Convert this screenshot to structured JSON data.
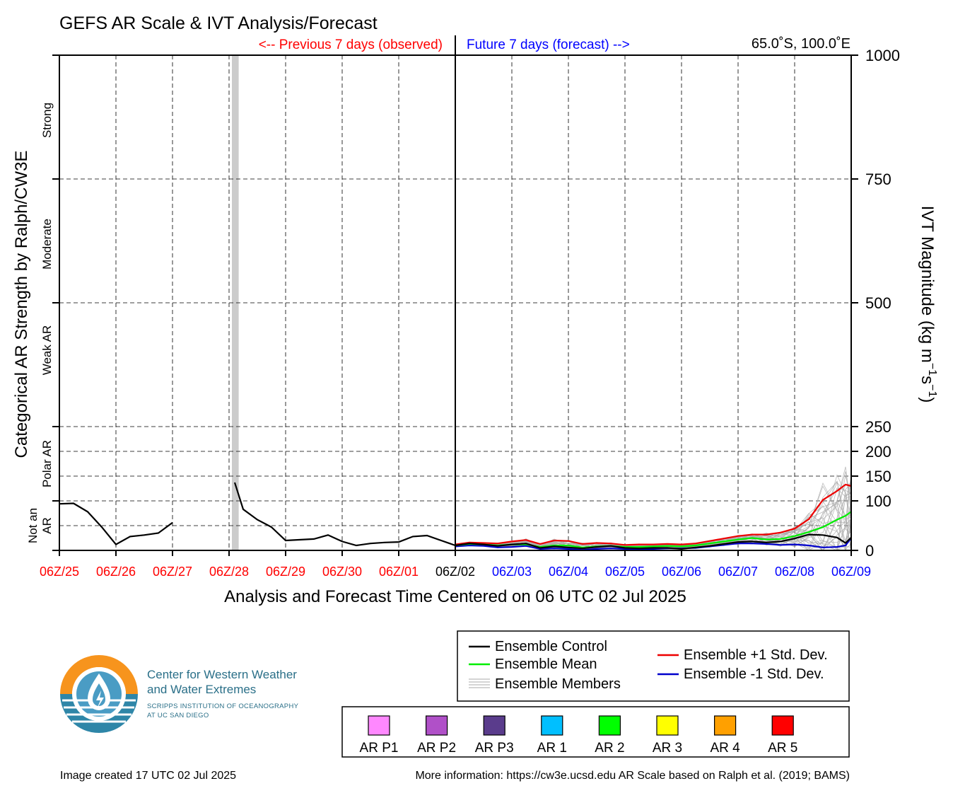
{
  "title": "GEFS AR Scale & IVT Analysis/Forecast",
  "previous_label": "<-- Previous 7 days (observed)",
  "future_label": "Future 7 days (forecast) -->",
  "location_label": "65.0˚S, 100.0˚E",
  "xlabel": "Analysis and Forecast Time Centered on 06 UTC 02 Jul 2025",
  "ylabel_left": "Categorical AR Strength by Ralph/CW3E",
  "ylabel_right": {
    "main": "IVT Magnitude (kg m",
    "sup1": "−1",
    "mid": "s",
    "sup2": "−1",
    "end": ")"
  },
  "category_labels": [
    {
      "lines": [
        "Not an",
        "AR"
      ]
    },
    {
      "lines": [
        "Polar AR"
      ]
    },
    {
      "lines": [
        "Weak AR"
      ]
    },
    {
      "lines": [
        "Moderate"
      ]
    },
    {
      "lines": [
        "Strong"
      ]
    }
  ],
  "colors": {
    "observed": "#ff0000",
    "forecast": "#0000ff",
    "control": "#000000",
    "mean": "#00ee00",
    "plus_std": "#ee0000",
    "minus_std": "#0000cc",
    "members": "#aaaaaa",
    "missing_band": "#cccccc"
  },
  "legend": {
    "control": "Ensemble Control",
    "mean": "Ensemble Mean",
    "members": "Ensemble Members",
    "plus_std": "Ensemble +1 Std. Dev.",
    "minus_std": "Ensemble -1 Std. Dev."
  },
  "ar_scale": [
    {
      "label": "AR P1",
      "color": "#ff88ff"
    },
    {
      "label": "AR P2",
      "color": "#b050c8"
    },
    {
      "label": "AR P3",
      "color": "#5a3c8c"
    },
    {
      "label": "AR 1",
      "color": "#00bfff"
    },
    {
      "label": "AR 2",
      "color": "#00ff00"
    },
    {
      "label": "AR 3",
      "color": "#ffff00"
    },
    {
      "label": "AR 4",
      "color": "#ffa000"
    },
    {
      "label": "AR 5",
      "color": "#ff0000"
    }
  ],
  "logo": {
    "line1": "Center for Western Weather",
    "line2": "and Water Extremes",
    "line3": "SCRIPPS INSTITUTION OF OCEANOGRAPHY",
    "line4": "AT UC SAN DIEGO"
  },
  "footer_left": "Image created 17 UTC 02 Jul 2025",
  "footer_right": "More information: https://cw3e.ucsd.edu AR Scale based on Ralph et al. (2019; BAMS)",
  "chart_data": {
    "type": "line",
    "title": "GEFS AR Scale & IVT Analysis/Forecast",
    "xlabel": "Analysis and Forecast Time Centered on 06 UTC 02 Jul 2025",
    "ylabel": "IVT Magnitude (kg m−1s−1)",
    "x_unit": "days relative to 06Z/02 Jul 2025",
    "xlim": [
      -7,
      7
    ],
    "ylim": [
      0,
      1000
    ],
    "y_scale": "piecewise (0-250 expanded, 250-1000 compressed)",
    "grid": true,
    "x_ticks": [
      {
        "value": -7,
        "label": "06Z/25",
        "period": "observed"
      },
      {
        "value": -6,
        "label": "06Z/26",
        "period": "observed"
      },
      {
        "value": -5,
        "label": "06Z/27",
        "period": "observed"
      },
      {
        "value": -4,
        "label": "06Z/28",
        "period": "observed"
      },
      {
        "value": -3,
        "label": "06Z/29",
        "period": "observed"
      },
      {
        "value": -2,
        "label": "06Z/30",
        "period": "observed"
      },
      {
        "value": -1,
        "label": "06Z/01",
        "period": "observed"
      },
      {
        "value": 0,
        "label": "06Z/02",
        "period": "now"
      },
      {
        "value": 1,
        "label": "06Z/03",
        "period": "forecast"
      },
      {
        "value": 2,
        "label": "06Z/04",
        "period": "forecast"
      },
      {
        "value": 3,
        "label": "06Z/05",
        "period": "forecast"
      },
      {
        "value": 4,
        "label": "06Z/06",
        "period": "forecast"
      },
      {
        "value": 5,
        "label": "06Z/07",
        "period": "forecast"
      },
      {
        "value": 6,
        "label": "06Z/08",
        "period": "forecast"
      },
      {
        "value": 7,
        "label": "06Z/09",
        "period": "forecast"
      }
    ],
    "y_ticks": [
      0,
      100,
      150,
      200,
      250,
      500,
      750,
      1000
    ],
    "y_grid_only": [
      50
    ],
    "missing_band": [
      -3.95,
      -3.83
    ],
    "observed": [
      [
        [
          -7.0,
          94
        ],
        [
          -6.75,
          95
        ],
        [
          -6.5,
          78
        ],
        [
          -6.25,
          47
        ],
        [
          -6.0,
          12
        ],
        [
          -5.75,
          28
        ],
        [
          -5.5,
          31
        ],
        [
          -5.25,
          35
        ],
        [
          -5.0,
          56
        ]
      ],
      [
        [
          -3.9,
          137
        ],
        [
          -3.75,
          83
        ],
        [
          -3.5,
          62
        ],
        [
          -3.25,
          47
        ],
        [
          -3.0,
          20
        ],
        [
          -2.5,
          23
        ],
        [
          -2.25,
          31
        ],
        [
          -2.0,
          18
        ],
        [
          -1.75,
          10
        ],
        [
          -1.5,
          14
        ],
        [
          -1.25,
          16
        ],
        [
          -1.0,
          17
        ],
        [
          -0.75,
          28
        ],
        [
          -0.5,
          30
        ],
        [
          -0.25,
          20
        ],
        [
          0.0,
          10
        ]
      ]
    ],
    "series": [
      {
        "name": "Ensemble Control",
        "role": "control",
        "points": [
          [
            0.0,
            10
          ],
          [
            0.25,
            14
          ],
          [
            0.5,
            12
          ],
          [
            0.75,
            9
          ],
          [
            1.0,
            12
          ],
          [
            1.25,
            14
          ],
          [
            1.5,
            5
          ],
          [
            1.75,
            8
          ],
          [
            2.0,
            6
          ],
          [
            2.25,
            4
          ],
          [
            2.5,
            7
          ],
          [
            2.75,
            9
          ],
          [
            3.0,
            5
          ],
          [
            3.25,
            4
          ],
          [
            3.5,
            5
          ],
          [
            3.75,
            5
          ],
          [
            4.0,
            3
          ],
          [
            4.25,
            6
          ],
          [
            4.5,
            9
          ],
          [
            4.75,
            13
          ],
          [
            5.0,
            17
          ],
          [
            5.25,
            18
          ],
          [
            5.5,
            16
          ],
          [
            5.75,
            18
          ],
          [
            6.0,
            24
          ],
          [
            6.25,
            32
          ],
          [
            6.5,
            31
          ],
          [
            6.75,
            26
          ],
          [
            6.9,
            15
          ],
          [
            7.0,
            26
          ]
        ]
      },
      {
        "name": "Ensemble Mean",
        "role": "mean",
        "points": [
          [
            0.0,
            10
          ],
          [
            0.25,
            13
          ],
          [
            0.5,
            12
          ],
          [
            0.75,
            10
          ],
          [
            1.0,
            12
          ],
          [
            1.25,
            12
          ],
          [
            1.5,
            7
          ],
          [
            1.75,
            10
          ],
          [
            2.0,
            10
          ],
          [
            2.25,
            6
          ],
          [
            2.5,
            8
          ],
          [
            2.75,
            9
          ],
          [
            3.0,
            7
          ],
          [
            3.25,
            7
          ],
          [
            3.5,
            8
          ],
          [
            3.75,
            9
          ],
          [
            4.0,
            8
          ],
          [
            4.25,
            10
          ],
          [
            4.5,
            14
          ],
          [
            4.75,
            18
          ],
          [
            5.0,
            22
          ],
          [
            5.25,
            25
          ],
          [
            5.5,
            22
          ],
          [
            5.75,
            23
          ],
          [
            6.0,
            29
          ],
          [
            6.25,
            37
          ],
          [
            6.5,
            47
          ],
          [
            6.75,
            62
          ],
          [
            6.9,
            70
          ],
          [
            7.0,
            78
          ]
        ]
      },
      {
        "name": "Ensemble +1 Std. Dev.",
        "role": "plus_std",
        "points": [
          [
            0.0,
            12
          ],
          [
            0.25,
            16
          ],
          [
            0.5,
            15
          ],
          [
            0.75,
            14
          ],
          [
            1.0,
            18
          ],
          [
            1.25,
            21
          ],
          [
            1.5,
            13
          ],
          [
            1.75,
            20
          ],
          [
            2.0,
            19
          ],
          [
            2.25,
            13
          ],
          [
            2.5,
            15
          ],
          [
            2.75,
            14
          ],
          [
            3.0,
            11
          ],
          [
            3.25,
            12
          ],
          [
            3.5,
            12
          ],
          [
            3.75,
            13
          ],
          [
            4.0,
            12
          ],
          [
            4.25,
            14
          ],
          [
            4.5,
            19
          ],
          [
            4.75,
            24
          ],
          [
            5.0,
            29
          ],
          [
            5.25,
            32
          ],
          [
            5.5,
            32
          ],
          [
            5.75,
            36
          ],
          [
            6.0,
            44
          ],
          [
            6.25,
            63
          ],
          [
            6.5,
            102
          ],
          [
            6.75,
            120
          ],
          [
            6.9,
            133
          ],
          [
            7.0,
            130
          ]
        ]
      },
      {
        "name": "Ensemble -1 Std. Dev.",
        "role": "minus_std",
        "points": [
          [
            0.0,
            8
          ],
          [
            0.25,
            10
          ],
          [
            0.5,
            9
          ],
          [
            0.75,
            6
          ],
          [
            1.0,
            7
          ],
          [
            1.25,
            9
          ],
          [
            1.5,
            3
          ],
          [
            1.75,
            4
          ],
          [
            2.0,
            3
          ],
          [
            2.25,
            1
          ],
          [
            2.5,
            3
          ],
          [
            2.75,
            4
          ],
          [
            3.0,
            3
          ],
          [
            3.25,
            2
          ],
          [
            3.5,
            3
          ],
          [
            3.75,
            4
          ],
          [
            4.0,
            4
          ],
          [
            4.25,
            5
          ],
          [
            4.5,
            8
          ],
          [
            4.75,
            11
          ],
          [
            5.0,
            14
          ],
          [
            5.25,
            14
          ],
          [
            5.5,
            13
          ],
          [
            5.75,
            11
          ],
          [
            6.0,
            12
          ],
          [
            6.25,
            10
          ],
          [
            6.5,
            6
          ],
          [
            6.75,
            7
          ],
          [
            6.9,
            10
          ],
          [
            7.0,
            25
          ]
        ]
      }
    ]
  }
}
